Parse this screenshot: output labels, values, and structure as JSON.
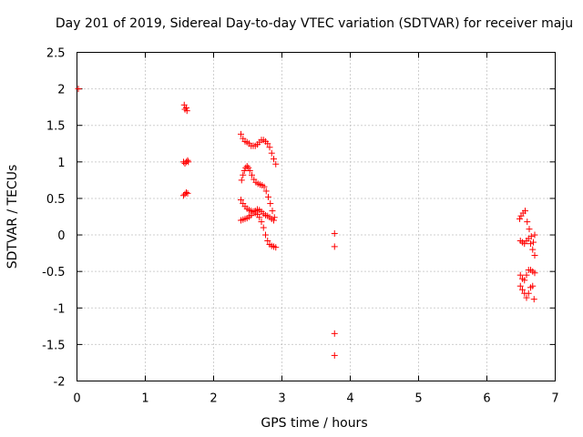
{
  "chart_data": {
    "type": "scatter",
    "title": "Day 201 of 2019, Sidereal Day-to-day VTEC variation (SDTVAR) for receiver maju",
    "xlabel": "GPS time / hours",
    "ylabel": "SDTVAR / TECUs",
    "xlim": [
      0,
      7
    ],
    "ylim": [
      -2,
      2.5
    ],
    "xticks": [
      0,
      1,
      2,
      3,
      4,
      5,
      6,
      7
    ],
    "yticks": [
      -2,
      -1.5,
      -1,
      -0.5,
      0,
      0.5,
      1,
      1.5,
      2,
      2.5
    ],
    "grid": true,
    "marker": "+",
    "color": "#ff0000",
    "series": [
      {
        "name": "SDTVAR",
        "points": [
          [
            0.02,
            2.0
          ],
          [
            1.57,
            1.78
          ],
          [
            1.58,
            1.72
          ],
          [
            1.6,
            1.74
          ],
          [
            1.61,
            1.7
          ],
          [
            1.56,
            1.0
          ],
          [
            1.58,
            0.98
          ],
          [
            1.6,
            1.0
          ],
          [
            1.62,
            1.02
          ],
          [
            1.63,
            1.0
          ],
          [
            1.56,
            0.54
          ],
          [
            1.58,
            0.56
          ],
          [
            1.6,
            0.58
          ],
          [
            1.62,
            0.57
          ],
          [
            2.4,
            1.38
          ],
          [
            2.43,
            1.32
          ],
          [
            2.46,
            1.28
          ],
          [
            2.49,
            1.27
          ],
          [
            2.52,
            1.25
          ],
          [
            2.55,
            1.22
          ],
          [
            2.58,
            1.22
          ],
          [
            2.61,
            1.22
          ],
          [
            2.64,
            1.24
          ],
          [
            2.67,
            1.27
          ],
          [
            2.7,
            1.3
          ],
          [
            2.73,
            1.3
          ],
          [
            2.76,
            1.28
          ],
          [
            2.79,
            1.25
          ],
          [
            2.82,
            1.2
          ],
          [
            2.85,
            1.12
          ],
          [
            2.88,
            1.04
          ],
          [
            2.91,
            0.97
          ],
          [
            2.41,
            0.75
          ],
          [
            2.43,
            0.82
          ],
          [
            2.45,
            0.88
          ],
          [
            2.47,
            0.92
          ],
          [
            2.49,
            0.94
          ],
          [
            2.51,
            0.92
          ],
          [
            2.53,
            0.88
          ],
          [
            2.56,
            0.82
          ],
          [
            2.59,
            0.76
          ],
          [
            2.62,
            0.72
          ],
          [
            2.65,
            0.7
          ],
          [
            2.68,
            0.69
          ],
          [
            2.71,
            0.68
          ],
          [
            2.74,
            0.66
          ],
          [
            2.77,
            0.6
          ],
          [
            2.8,
            0.52
          ],
          [
            2.83,
            0.43
          ],
          [
            2.86,
            0.33
          ],
          [
            2.89,
            0.24
          ],
          [
            2.4,
            0.48
          ],
          [
            2.43,
            0.43
          ],
          [
            2.46,
            0.39
          ],
          [
            2.49,
            0.36
          ],
          [
            2.52,
            0.34
          ],
          [
            2.55,
            0.33
          ],
          [
            2.58,
            0.32
          ],
          [
            2.61,
            0.3
          ],
          [
            2.64,
            0.28
          ],
          [
            2.67,
            0.24
          ],
          [
            2.7,
            0.18
          ],
          [
            2.73,
            0.1
          ],
          [
            2.76,
            0.0
          ],
          [
            2.79,
            -0.08
          ],
          [
            2.82,
            -0.13
          ],
          [
            2.85,
            -0.15
          ],
          [
            2.88,
            -0.16
          ],
          [
            2.91,
            -0.17
          ],
          [
            2.4,
            0.2
          ],
          [
            2.43,
            0.21
          ],
          [
            2.46,
            0.22
          ],
          [
            2.49,
            0.23
          ],
          [
            2.52,
            0.25
          ],
          [
            2.55,
            0.27
          ],
          [
            2.58,
            0.3
          ],
          [
            2.61,
            0.33
          ],
          [
            2.64,
            0.35
          ],
          [
            2.67,
            0.34
          ],
          [
            2.7,
            0.32
          ],
          [
            2.73,
            0.29
          ],
          [
            2.76,
            0.27
          ],
          [
            2.79,
            0.26
          ],
          [
            2.82,
            0.24
          ],
          [
            2.85,
            0.22
          ],
          [
            2.88,
            0.2
          ],
          [
            3.77,
            0.02
          ],
          [
            3.77,
            -0.16
          ],
          [
            3.77,
            -1.35
          ],
          [
            3.77,
            -1.65
          ],
          [
            6.48,
            0.22
          ],
          [
            6.5,
            0.26
          ],
          [
            6.53,
            0.3
          ],
          [
            6.56,
            0.33
          ],
          [
            6.59,
            0.18
          ],
          [
            6.62,
            0.08
          ],
          [
            6.65,
            -0.02
          ],
          [
            6.68,
            -0.1
          ],
          [
            6.49,
            -0.08
          ],
          [
            6.52,
            -0.1
          ],
          [
            6.55,
            -0.12
          ],
          [
            6.58,
            -0.08
          ],
          [
            6.61,
            -0.05
          ],
          [
            6.64,
            -0.12
          ],
          [
            6.67,
            -0.2
          ],
          [
            6.7,
            -0.28
          ],
          [
            6.7,
            0.0
          ],
          [
            6.49,
            -0.55
          ],
          [
            6.52,
            -0.6
          ],
          [
            6.55,
            -0.62
          ],
          [
            6.58,
            -0.55
          ],
          [
            6.61,
            -0.48
          ],
          [
            6.64,
            -0.48
          ],
          [
            6.67,
            -0.5
          ],
          [
            6.7,
            -0.52
          ],
          [
            6.49,
            -0.7
          ],
          [
            6.52,
            -0.75
          ],
          [
            6.55,
            -0.8
          ],
          [
            6.58,
            -0.86
          ],
          [
            6.61,
            -0.8
          ],
          [
            6.64,
            -0.72
          ],
          [
            6.67,
            -0.7
          ],
          [
            6.69,
            -0.88
          ]
        ]
      }
    ]
  }
}
